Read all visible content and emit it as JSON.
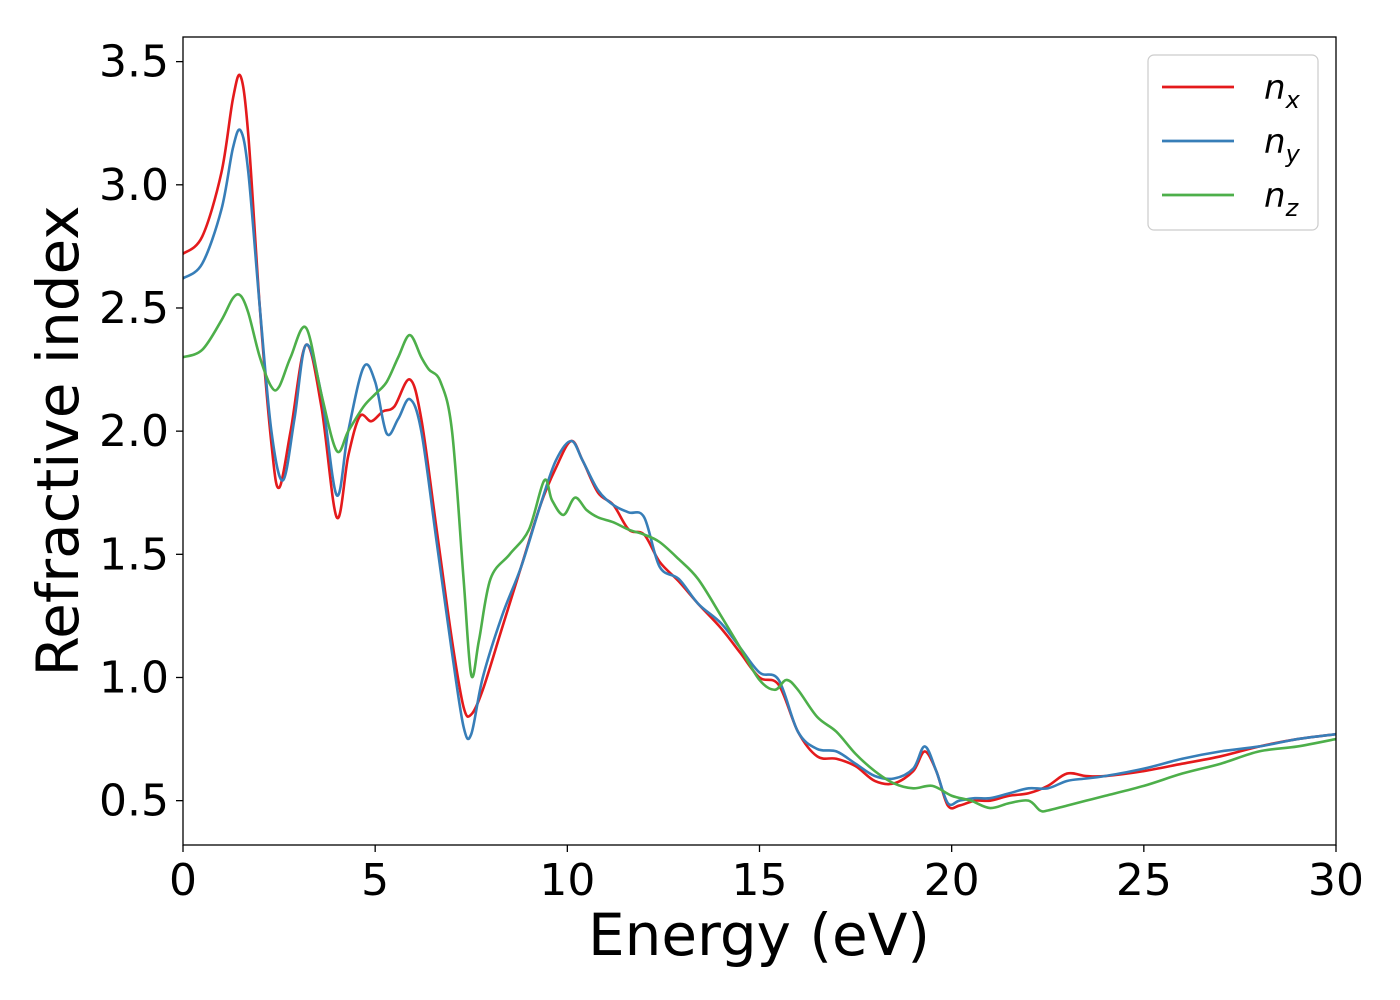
{
  "chart_data": {
    "type": "line",
    "title": "",
    "xlabel": "Energy (eV)",
    "ylabel": "Refractive index",
    "xlim": [
      0,
      30
    ],
    "ylim": [
      0.32,
      3.6
    ],
    "xticks": [
      0,
      5,
      10,
      15,
      20,
      25,
      30
    ],
    "xtick_labels": [
      "0",
      "5",
      "10",
      "15",
      "20",
      "25",
      "30"
    ],
    "yticks": [
      0.5,
      1.0,
      1.5,
      2.0,
      2.5,
      3.0,
      3.5
    ],
    "ytick_labels": [
      "0.5",
      "1.0",
      "1.5",
      "2.0",
      "2.5",
      "3.0",
      "3.5"
    ],
    "grid": false,
    "legend_position": "top-right",
    "series": [
      {
        "name": "n_x",
        "label_main": "n",
        "label_sub": "x",
        "color": "#e41a1c",
        "x": [
          0,
          0.5,
          1.0,
          1.3,
          1.5,
          1.7,
          2.0,
          2.3,
          2.5,
          2.8,
          3.2,
          3.6,
          4.0,
          4.3,
          4.6,
          4.9,
          5.2,
          5.5,
          5.9,
          6.2,
          6.6,
          7.0,
          7.3,
          7.5,
          7.8,
          8.3,
          8.8,
          9.3,
          9.7,
          10.1,
          10.4,
          10.8,
          11.2,
          11.6,
          12.0,
          12.4,
          12.9,
          13.4,
          14.0,
          14.5,
          15.0,
          15.5,
          16.0,
          16.5,
          17.0,
          17.5,
          18.0,
          18.5,
          19.0,
          19.3,
          19.6,
          19.9,
          20.2,
          20.6,
          21.0,
          21.5,
          22.0,
          22.5,
          23.0,
          23.5,
          24.0,
          25.0,
          26.0,
          27.0,
          28.0,
          29.0,
          30.0
        ],
        "y": [
          2.72,
          2.79,
          3.05,
          3.35,
          3.44,
          3.2,
          2.5,
          1.95,
          1.77,
          2.0,
          2.35,
          2.1,
          1.65,
          1.9,
          2.06,
          2.04,
          2.08,
          2.1,
          2.21,
          2.05,
          1.6,
          1.15,
          0.88,
          0.85,
          0.95,
          1.2,
          1.45,
          1.7,
          1.85,
          1.96,
          1.88,
          1.75,
          1.7,
          1.6,
          1.58,
          1.47,
          1.39,
          1.3,
          1.2,
          1.1,
          1.0,
          0.97,
          0.78,
          0.68,
          0.67,
          0.64,
          0.58,
          0.57,
          0.62,
          0.7,
          0.62,
          0.48,
          0.48,
          0.5,
          0.5,
          0.52,
          0.53,
          0.56,
          0.61,
          0.6,
          0.6,
          0.62,
          0.65,
          0.68,
          0.72,
          0.75,
          0.77
        ]
      },
      {
        "name": "n_y",
        "label_main": "n",
        "label_sub": "y",
        "color": "#377eb8",
        "x": [
          0,
          0.5,
          1.0,
          1.3,
          1.5,
          1.7,
          2.0,
          2.3,
          2.6,
          2.9,
          3.2,
          3.6,
          4.0,
          4.3,
          4.7,
          5.0,
          5.3,
          5.6,
          5.9,
          6.2,
          6.6,
          7.0,
          7.3,
          7.5,
          7.8,
          8.3,
          8.8,
          9.3,
          9.7,
          10.1,
          10.4,
          10.8,
          11.2,
          11.6,
          12.0,
          12.4,
          12.9,
          13.4,
          14.0,
          14.5,
          15.0,
          15.5,
          16.0,
          16.5,
          17.0,
          17.5,
          18.0,
          18.5,
          19.0,
          19.3,
          19.6,
          19.9,
          20.2,
          20.6,
          21.0,
          21.5,
          22.0,
          22.5,
          23.0,
          23.5,
          24.0,
          25.0,
          26.0,
          27.0,
          28.0,
          29.0,
          30.0
        ],
        "y": [
          2.62,
          2.68,
          2.9,
          3.15,
          3.22,
          3.05,
          2.5,
          2.0,
          1.8,
          2.05,
          2.35,
          2.15,
          1.74,
          2.0,
          2.26,
          2.2,
          1.99,
          2.05,
          2.13,
          2.0,
          1.55,
          1.1,
          0.8,
          0.77,
          1.0,
          1.25,
          1.45,
          1.7,
          1.88,
          1.96,
          1.88,
          1.76,
          1.7,
          1.67,
          1.65,
          1.45,
          1.4,
          1.3,
          1.22,
          1.12,
          1.02,
          0.99,
          0.78,
          0.71,
          0.7,
          0.65,
          0.6,
          0.59,
          0.63,
          0.72,
          0.62,
          0.49,
          0.5,
          0.51,
          0.51,
          0.53,
          0.55,
          0.55,
          0.58,
          0.59,
          0.6,
          0.63,
          0.67,
          0.7,
          0.72,
          0.75,
          0.77
        ]
      },
      {
        "name": "n_z",
        "label_main": "n",
        "label_sub": "z",
        "color": "#4daf4a",
        "x": [
          0,
          0.5,
          1.0,
          1.3,
          1.5,
          1.7,
          2.0,
          2.3,
          2.5,
          2.8,
          3.2,
          3.6,
          4.0,
          4.3,
          4.7,
          5.0,
          5.3,
          5.6,
          5.9,
          6.2,
          6.4,
          6.7,
          7.0,
          7.3,
          7.5,
          7.7,
          8.0,
          8.5,
          9.0,
          9.4,
          9.6,
          9.9,
          10.2,
          10.5,
          10.8,
          11.2,
          11.6,
          12.0,
          12.4,
          12.9,
          13.4,
          14.0,
          14.5,
          15.0,
          15.4,
          15.7,
          16.0,
          16.5,
          17.0,
          17.5,
          18.0,
          18.5,
          19.0,
          19.5,
          20.0,
          20.5,
          21.0,
          21.5,
          22.0,
          22.3,
          22.5,
          23.0,
          23.5,
          24.0,
          25.0,
          26.0,
          27.0,
          28.0,
          29.0,
          30.0
        ],
        "y": [
          2.3,
          2.33,
          2.45,
          2.54,
          2.55,
          2.48,
          2.3,
          2.18,
          2.18,
          2.3,
          2.42,
          2.15,
          1.92,
          2.0,
          2.1,
          2.15,
          2.2,
          2.3,
          2.39,
          2.3,
          2.25,
          2.2,
          2.0,
          1.4,
          1.01,
          1.15,
          1.4,
          1.5,
          1.6,
          1.8,
          1.72,
          1.66,
          1.73,
          1.68,
          1.65,
          1.63,
          1.6,
          1.58,
          1.55,
          1.48,
          1.4,
          1.25,
          1.12,
          0.99,
          0.95,
          0.99,
          0.95,
          0.84,
          0.78,
          0.69,
          0.62,
          0.57,
          0.55,
          0.56,
          0.52,
          0.5,
          0.47,
          0.49,
          0.5,
          0.46,
          0.46,
          0.48,
          0.5,
          0.52,
          0.56,
          0.61,
          0.65,
          0.7,
          0.72,
          0.75
        ]
      }
    ]
  }
}
